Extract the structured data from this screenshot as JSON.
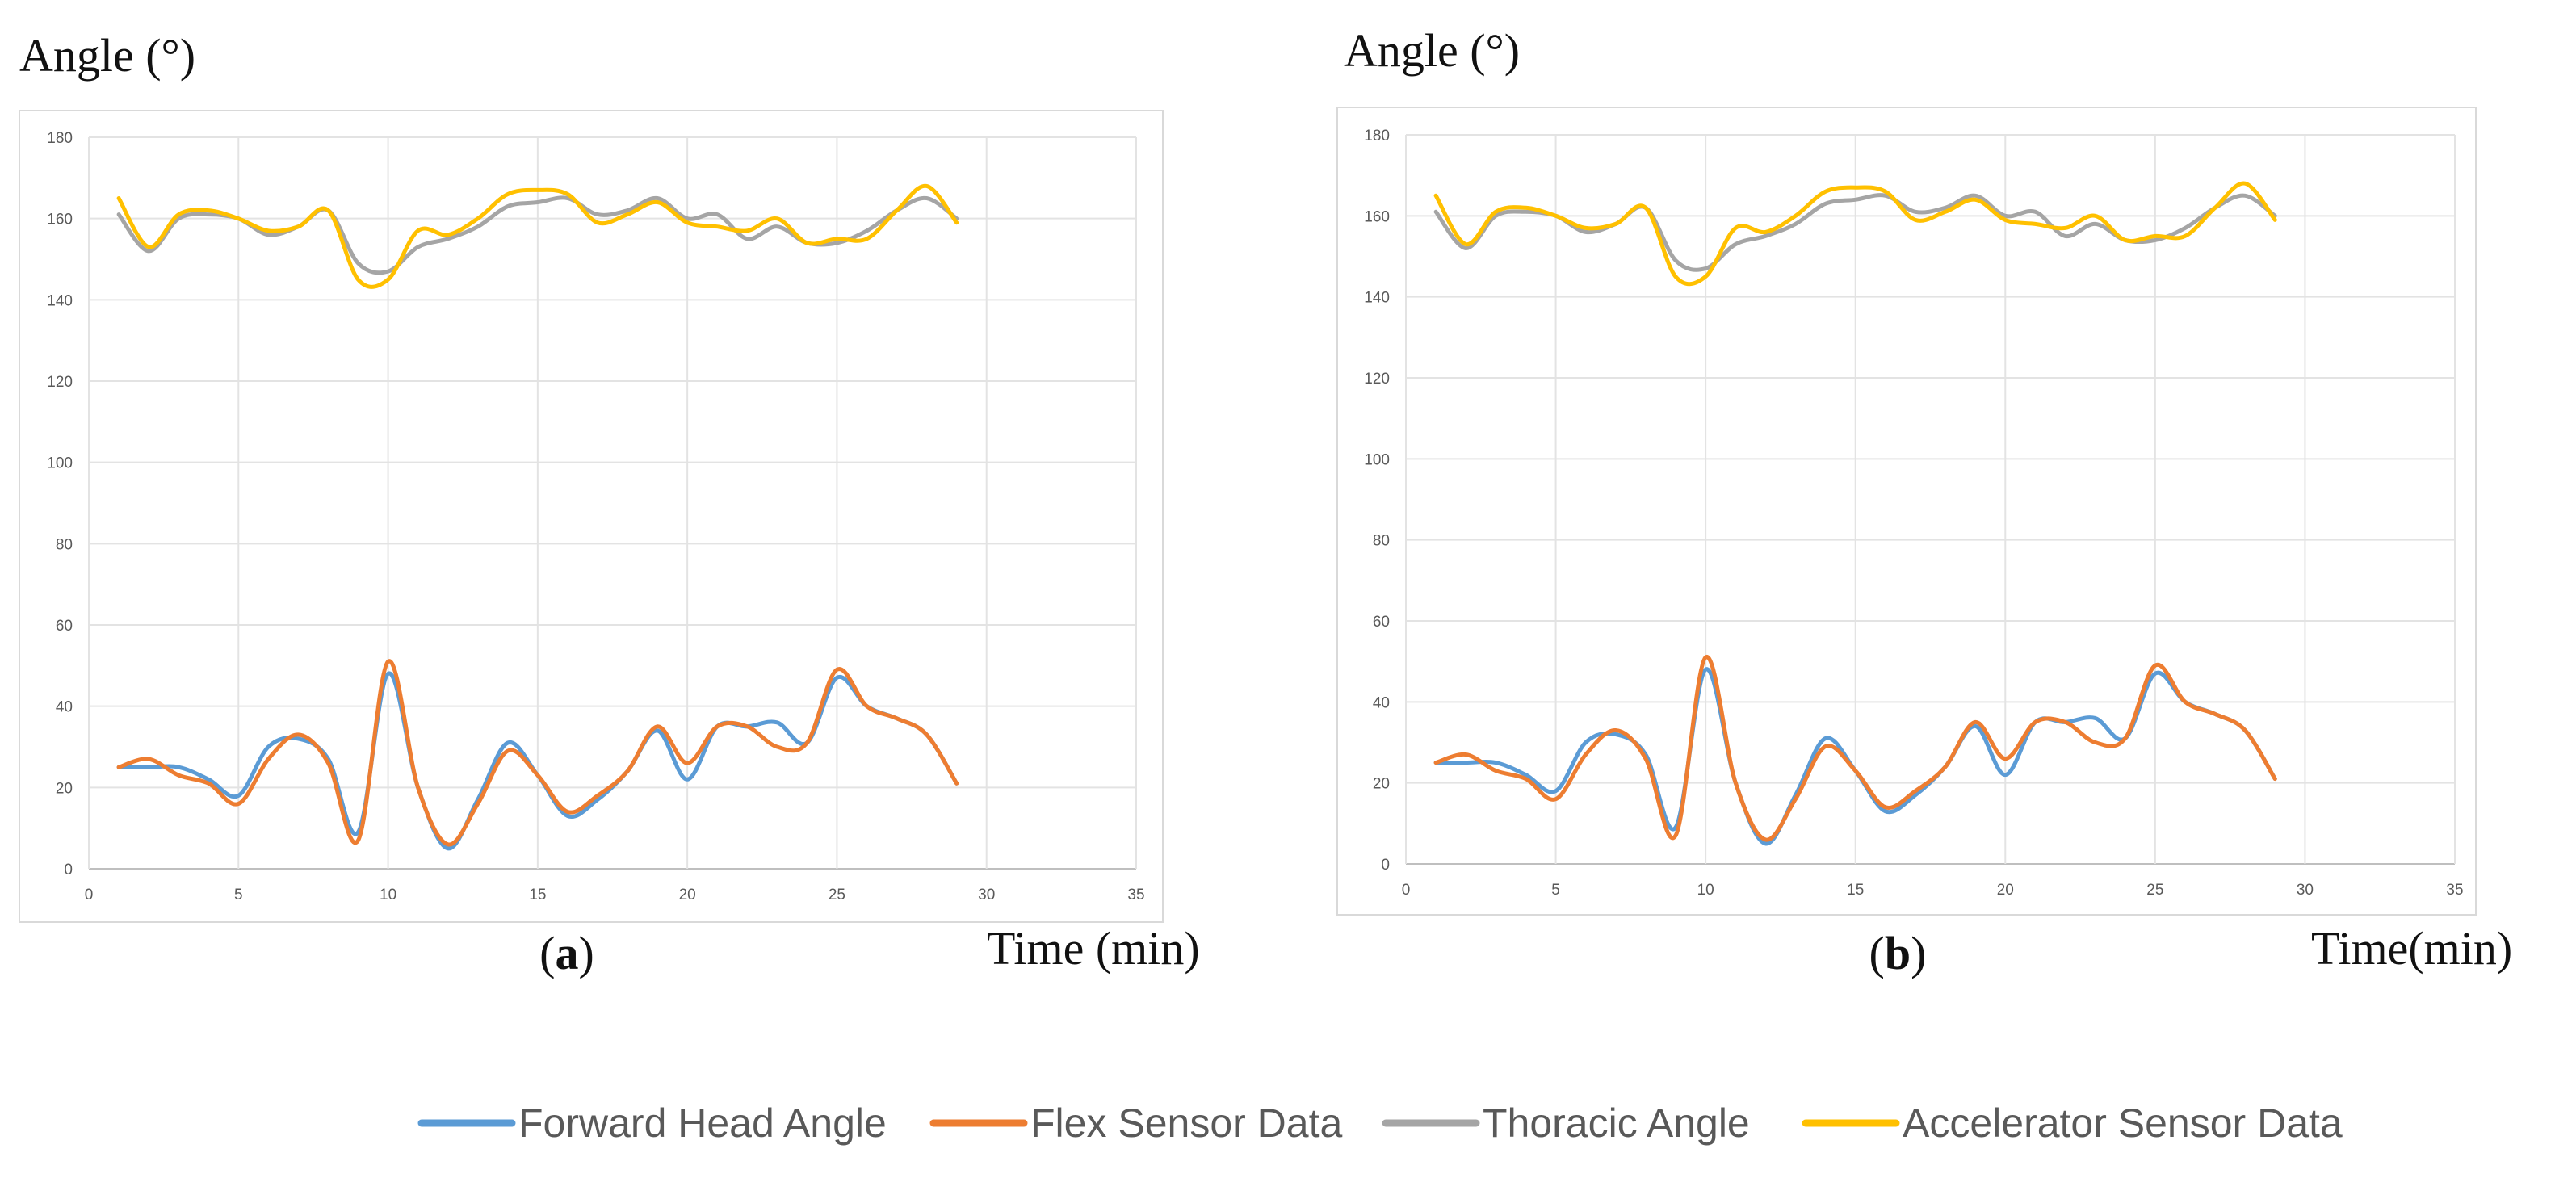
{
  "chart_data": [
    {
      "type": "line",
      "panel_label_open": "(",
      "panel_label_letter": "a",
      "panel_label_close": ")",
      "ylabel": "Angle (°)",
      "xlabel": "Time (min)",
      "xlim": [
        0,
        35
      ],
      "ylim": [
        0,
        180
      ],
      "xticks": [
        0,
        5,
        10,
        15,
        20,
        25,
        30,
        35
      ],
      "yticks": [
        0,
        20,
        40,
        60,
        80,
        100,
        120,
        140,
        160,
        180
      ],
      "grid": true,
      "x": [
        1,
        2,
        3,
        4,
        5,
        6,
        7,
        8,
        9,
        10,
        11,
        12,
        13,
        14,
        15,
        16,
        17,
        18,
        19,
        20,
        21,
        22,
        23,
        24,
        25,
        26,
        27,
        28,
        29
      ],
      "series": [
        {
          "name": "Forward Head Angle",
          "color": "#5B9BD5",
          "values": [
            25,
            25,
            25,
            22,
            18,
            30,
            32,
            27,
            9,
            48,
            20,
            5,
            17,
            31,
            23,
            13,
            17,
            24,
            34,
            22,
            35,
            35,
            36,
            31,
            47,
            40,
            37,
            33,
            21
          ]
        },
        {
          "name": "Flex Sensor Data",
          "color": "#ED7D31",
          "values": [
            25,
            27,
            23,
            21,
            16,
            27,
            33,
            26,
            7,
            51,
            20,
            6,
            16,
            29,
            23,
            14,
            18,
            24,
            35,
            26,
            35,
            35,
            30,
            31,
            49,
            40,
            37,
            33,
            21
          ]
        },
        {
          "name": "Thoracic Angle",
          "color": "#A5A5A5",
          "values": [
            161,
            152,
            160,
            161,
            160,
            156,
            158,
            162,
            149,
            147,
            153,
            155,
            158,
            163,
            164,
            165,
            161,
            162,
            165,
            160,
            161,
            155,
            158,
            154,
            154,
            157,
            162,
            165,
            160
          ]
        },
        {
          "name": "Accelerator Sensor Data",
          "color": "#FFC000",
          "values": [
            165,
            153,
            161,
            162,
            160,
            157,
            158,
            162,
            145,
            145,
            157,
            156,
            160,
            166,
            167,
            166,
            159,
            161,
            164,
            159,
            158,
            157,
            160,
            154,
            155,
            155,
            162,
            168,
            159
          ]
        }
      ]
    },
    {
      "type": "line",
      "panel_label_open": "(",
      "panel_label_letter": "b",
      "panel_label_close": ")",
      "ylabel": "Angle (°)",
      "xlabel": "Time(min)",
      "xlim": [
        0,
        35
      ],
      "ylim": [
        0,
        180
      ],
      "xticks": [
        0,
        5,
        10,
        15,
        20,
        25,
        30,
        35
      ],
      "yticks": [
        0,
        20,
        40,
        60,
        80,
        100,
        120,
        140,
        160,
        180
      ],
      "grid": true,
      "x": [
        1,
        2,
        3,
        4,
        5,
        6,
        7,
        8,
        9,
        10,
        11,
        12,
        13,
        14,
        15,
        16,
        17,
        18,
        19,
        20,
        21,
        22,
        23,
        24,
        25,
        26,
        27,
        28,
        29
      ],
      "series": [
        {
          "name": "Forward Head Angle",
          "color": "#5B9BD5",
          "values": [
            25,
            25,
            25,
            22,
            18,
            30,
            32,
            27,
            9,
            48,
            20,
            5,
            17,
            31,
            23,
            13,
            17,
            24,
            34,
            22,
            35,
            35,
            36,
            31,
            47,
            40,
            37,
            33,
            21
          ]
        },
        {
          "name": "Flex Sensor Data",
          "color": "#ED7D31",
          "values": [
            25,
            27,
            23,
            21,
            16,
            27,
            33,
            26,
            7,
            51,
            20,
            6,
            16,
            29,
            23,
            14,
            18,
            24,
            35,
            26,
            35,
            35,
            30,
            31,
            49,
            40,
            37,
            33,
            21
          ]
        },
        {
          "name": "Thoracic Angle",
          "color": "#A5A5A5",
          "values": [
            161,
            152,
            160,
            161,
            160,
            156,
            158,
            162,
            149,
            147,
            153,
            155,
            158,
            163,
            164,
            165,
            161,
            162,
            165,
            160,
            161,
            155,
            158,
            154,
            154,
            157,
            162,
            165,
            160
          ]
        },
        {
          "name": "Accelerator Sensor Data",
          "color": "#FFC000",
          "values": [
            165,
            153,
            161,
            162,
            160,
            157,
            158,
            162,
            145,
            145,
            157,
            156,
            160,
            166,
            167,
            166,
            159,
            161,
            164,
            159,
            158,
            157,
            160,
            154,
            155,
            155,
            162,
            168,
            159
          ]
        }
      ]
    }
  ],
  "legend": [
    {
      "label": "Forward Head Angle",
      "color": "#5B9BD5"
    },
    {
      "label": "Flex Sensor Data",
      "color": "#ED7D31"
    },
    {
      "label": "Thoracic Angle",
      "color": "#A5A5A5"
    },
    {
      "label": "Accelerator Sensor Data",
      "color": "#FFC000"
    }
  ]
}
